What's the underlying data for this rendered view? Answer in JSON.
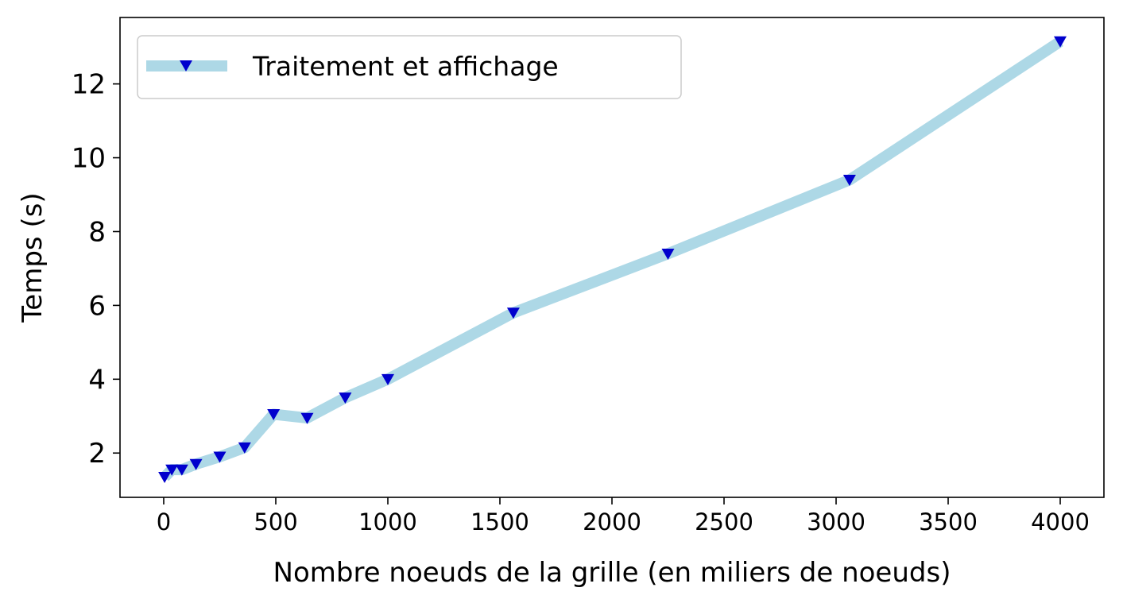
{
  "chart_data": {
    "type": "line",
    "title": "",
    "xlabel": "Nombre noeuds de la grille (en miliers de noeuds)",
    "ylabel": "Temps (s)",
    "xlim": [
      -195,
      4195
    ],
    "ylim": [
      0.8,
      13.8
    ],
    "xticks": [
      0,
      500,
      1000,
      1500,
      2000,
      2500,
      3000,
      3500,
      4000
    ],
    "yticks": [
      2,
      4,
      6,
      8,
      10,
      12
    ],
    "grid": false,
    "legend_position": "upper-left",
    "series": [
      {
        "name": "Traitement et affichage",
        "line_color": "#add8e6",
        "marker_color": "#0000cd",
        "marker": "triangle-down",
        "x": [
          4,
          36,
          81,
          144,
          250,
          361,
          490,
          640,
          810,
          1000,
          1560,
          2250,
          3060,
          4000
        ],
        "y": [
          1.35,
          1.55,
          1.55,
          1.7,
          1.9,
          2.15,
          3.05,
          2.95,
          3.5,
          4.0,
          5.8,
          7.4,
          9.4,
          13.15
        ]
      }
    ]
  }
}
